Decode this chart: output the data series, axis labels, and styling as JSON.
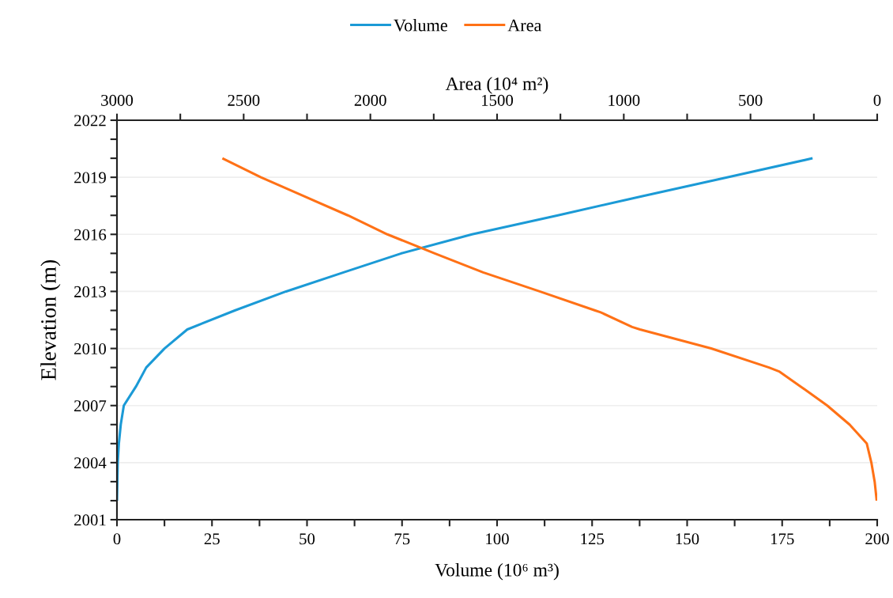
{
  "chart_data": {
    "type": "line",
    "xlabel": "Volume (10⁶ m³)",
    "x2label": "Area (10⁴ m²)",
    "ylabel": "Elevation (m)",
    "xlim": [
      0,
      200
    ],
    "xticks": [
      0,
      {
        "value": 12.5,
        "label": null
      },
      25,
      {
        "value": 37.5,
        "label": null
      },
      50,
      {
        "value": 62.5,
        "label": null
      },
      75,
      {
        "value": 87.5,
        "label": null
      },
      100,
      {
        "value": 112.5,
        "label": null
      },
      125,
      {
        "value": 137.5,
        "label": null
      },
      150,
      {
        "value": 162.5,
        "label": null
      },
      175,
      {
        "value": 187.5,
        "label": null
      },
      200
    ],
    "x2lim": [
      3000,
      0
    ],
    "x2ticks": [
      3000,
      {
        "value": 2750,
        "label": null
      },
      2500,
      {
        "value": 2250,
        "label": null
      },
      2000,
      {
        "value": 1750,
        "label": null
      },
      1500,
      {
        "value": 1250,
        "label": null
      },
      1000,
      {
        "value": 750,
        "label": null
      },
      500,
      {
        "value": 250,
        "label": null
      },
      0
    ],
    "ylim": [
      2001,
      2022
    ],
    "yticks": [
      2001,
      {
        "value": 2002,
        "label": null
      },
      {
        "value": 2003,
        "label": null
      },
      2004,
      {
        "value": 2005,
        "label": null
      },
      {
        "value": 2006,
        "label": null
      },
      2007,
      {
        "value": 2008,
        "label": null
      },
      {
        "value": 2009,
        "label": null
      },
      2010,
      {
        "value": 2011,
        "label": null
      },
      {
        "value": 2012,
        "label": null
      },
      2013,
      {
        "value": 2014,
        "label": null
      },
      {
        "value": 2015,
        "label": null
      },
      2016,
      {
        "value": 2017,
        "label": null
      },
      {
        "value": 2018,
        "label": null
      },
      2019,
      {
        "value": 2020,
        "label": null
      },
      {
        "value": 2021,
        "label": null
      },
      2022
    ],
    "grid": "y",
    "legend": "top",
    "marker": "none",
    "line_style": "solid",
    "series": [
      {
        "name": "Volume",
        "color": "#1b9ad6",
        "x": [
          0,
          0.1,
          0.2,
          0.5,
          1.0,
          1.8,
          5.0,
          7.7,
          12.5,
          18.5,
          31,
          44.5,
          59.6,
          74.8,
          93.4,
          116,
          138,
          160.5,
          183
        ],
        "values": [
          2002,
          2003,
          2004,
          2005,
          2006,
          2007,
          2008,
          2009,
          2010,
          2011,
          2012,
          2013,
          2014,
          2015,
          2016,
          2017,
          2018,
          2019,
          2020
        ]
      },
      {
        "name": "Area",
        "color": "#ff7116",
        "axis": "x2",
        "x": [
          2,
          10,
          23,
          41,
          109,
          197,
          302,
          385,
          427,
          655,
          936,
          967,
          1091,
          1113,
          1332,
          1555,
          1746,
          1933,
          2089,
          2261,
          2432,
          2584
        ],
        "values": [
          2002,
          2003,
          2004,
          2005,
          2006,
          2007,
          2008,
          2008.78,
          2009,
          2010,
          2011,
          2011.13,
          2011.9,
          2012,
          2013,
          2014,
          2015,
          2016,
          2017,
          2018,
          2019,
          2020
        ]
      }
    ]
  }
}
